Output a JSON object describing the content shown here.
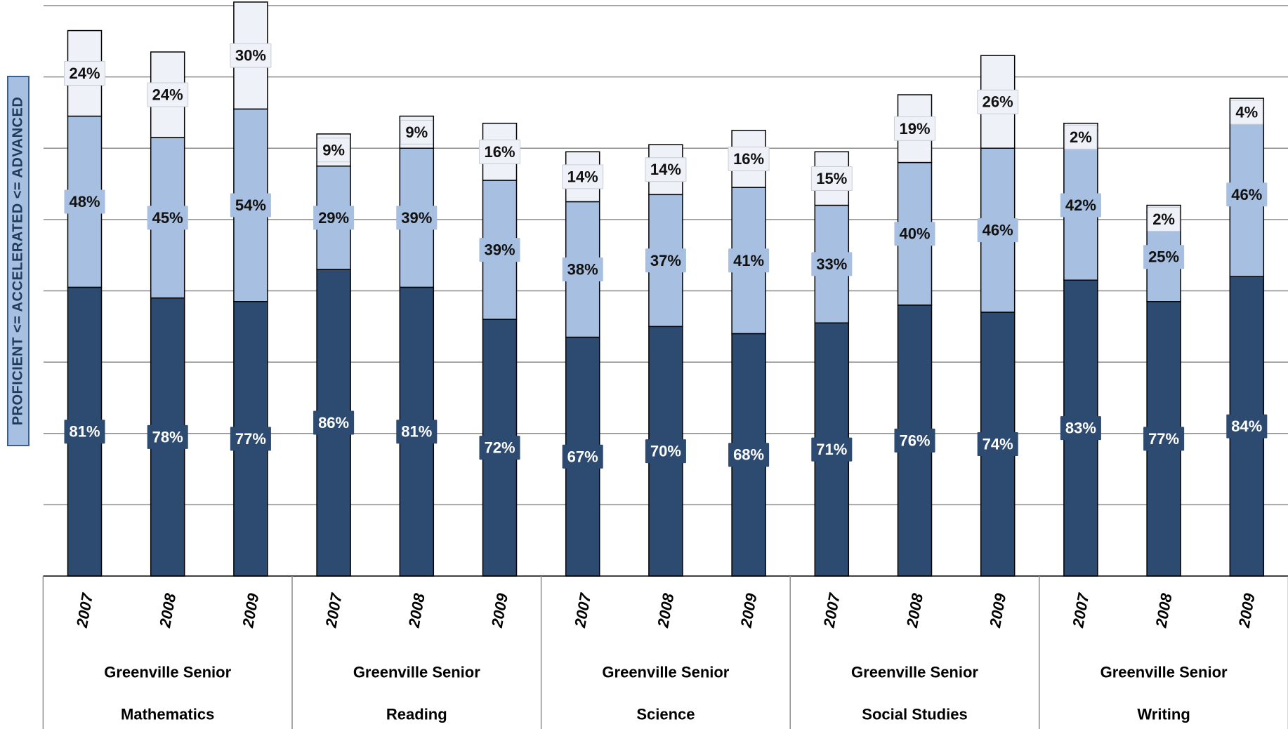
{
  "chart_data": {
    "type": "bar",
    "stacked": true,
    "ylabel": "PROFICIENT <= ACCELERATED <= ADVANCED",
    "groups": [
      {
        "line1": "Greenville Senior",
        "line2": "Mathematics",
        "years": [
          "2007",
          "2008",
          "2009"
        ]
      },
      {
        "line1": "Greenville Senior",
        "line2": "Reading",
        "years": [
          "2007",
          "2008",
          "2009"
        ]
      },
      {
        "line1": "Greenville Senior",
        "line2": "Science",
        "years": [
          "2007",
          "2008",
          "2009"
        ]
      },
      {
        "line1": "Greenville Senior",
        "line2": "Social Studies",
        "years": [
          "2007",
          "2008",
          "2009"
        ]
      },
      {
        "line1": "Greenville Senior",
        "line2": "Writing",
        "years": [
          "2007",
          "2008",
          "2009"
        ]
      }
    ],
    "series": [
      {
        "values": [
          81,
          78,
          77,
          86,
          81,
          72,
          67,
          70,
          68,
          71,
          76,
          74,
          83,
          77,
          84
        ],
        "labels": [
          "81%",
          "78%",
          "77%",
          "86%",
          "81%",
          "72%",
          "67%",
          "70%",
          "68%",
          "71%",
          "76%",
          "74%",
          "83%",
          "77%",
          "84%"
        ]
      },
      {
        "values": [
          48,
          45,
          54,
          29,
          39,
          39,
          38,
          37,
          41,
          33,
          40,
          46,
          42,
          25,
          46
        ],
        "labels": [
          "48%",
          "45%",
          "54%",
          "29%",
          "39%",
          "39%",
          "38%",
          "37%",
          "41%",
          "33%",
          "40%",
          "46%",
          "42%",
          "25%",
          "46%"
        ]
      },
      {
        "values": [
          24,
          24,
          30,
          9,
          9,
          16,
          14,
          14,
          16,
          15,
          19,
          26,
          2,
          2,
          4
        ],
        "labels": [
          "24%",
          "24%",
          "30%",
          "9%",
          "9%",
          "16%",
          "14%",
          "14%",
          "16%",
          "15%",
          "19%",
          "26%",
          "2%",
          "2%",
          "4%"
        ]
      }
    ],
    "ylim": [
      0,
      160
    ],
    "grid": true,
    "colors": [
      "#2d4a70",
      "#a7bfe0",
      "#eef2f8"
    ],
    "label_bg": [
      "#2d4a70",
      "#a7bfe0",
      "#eef2f8"
    ],
    "label_fg": [
      "#ffffff",
      "#111111",
      "#111111"
    ]
  }
}
